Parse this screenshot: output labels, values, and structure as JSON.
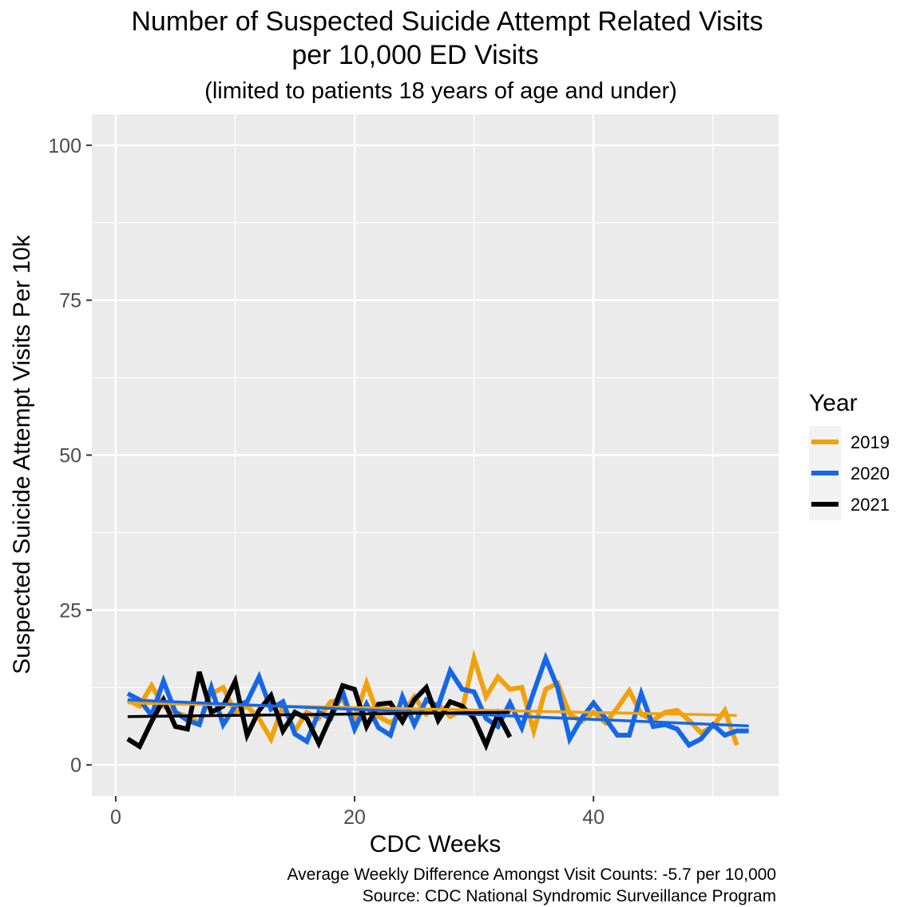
{
  "chart_data": {
    "type": "line",
    "title": "Number of Suspected Suicide Attempt Related Visits",
    "title_line2": "per 10,000 ED Visits",
    "subtitle": "(limited to patients 18 years of age and under)",
    "xlabel": "CDC Weeks",
    "ylabel": "Suspected Suicide Attempt Visits Per 10k",
    "xlim": [
      -2,
      55.5
    ],
    "ylim": [
      -5,
      105
    ],
    "xticks": [
      0,
      20,
      40
    ],
    "yticks": [
      0,
      25,
      50,
      75,
      100
    ],
    "xtick_labels": [
      "0",
      "20",
      "40"
    ],
    "ytick_labels": [
      "0",
      "25",
      "50",
      "75",
      "100"
    ],
    "background": "#ebebeb",
    "grid": true,
    "legend": {
      "title": "Year",
      "position": "right"
    },
    "series": [
      {
        "name": "2019",
        "color": "#f0a10c",
        "x": [
          1,
          2,
          3,
          4,
          5,
          6,
          7,
          8,
          9,
          10,
          11,
          12,
          13,
          14,
          15,
          16,
          17,
          18,
          19,
          20,
          21,
          22,
          23,
          24,
          25,
          26,
          27,
          28,
          29,
          30,
          31,
          32,
          33,
          34,
          35,
          36,
          37,
          38,
          39,
          40,
          41,
          42,
          43,
          44,
          45,
          46,
          47,
          48,
          49,
          50,
          51,
          52
        ],
        "values": [
          10.5,
          9.5,
          12.8,
          9.5,
          8.5,
          7.8,
          6.8,
          11.5,
          12.5,
          8.5,
          9.5,
          7.5,
          4.2,
          9.5,
          5.5,
          8.5,
          7.5,
          10.2,
          10.5,
          7.5,
          13.2,
          7.8,
          6.8,
          8.2,
          11.0,
          8.2,
          9.8,
          7.8,
          8.8,
          17.2,
          11.0,
          14.2,
          12.2,
          12.5,
          5.5,
          12.2,
          13.2,
          8.2,
          7.0,
          8.5,
          6.8,
          9.2,
          12.0,
          8.2,
          7.2,
          8.5,
          8.8,
          7.2,
          5.2,
          6.2,
          8.8,
          3.2
        ]
      },
      {
        "name": "2020",
        "color": "#1567e6",
        "x": [
          1,
          2,
          3,
          4,
          5,
          6,
          7,
          8,
          9,
          10,
          11,
          12,
          13,
          14,
          15,
          16,
          17,
          18,
          19,
          20,
          21,
          22,
          23,
          24,
          25,
          26,
          27,
          28,
          29,
          30,
          31,
          32,
          33,
          34,
          35,
          36,
          37,
          38,
          39,
          40,
          41,
          42,
          43,
          44,
          45,
          46,
          47,
          48,
          49,
          50,
          51,
          52,
          53
        ],
        "values": [
          11.5,
          10.5,
          8.0,
          13.5,
          8.5,
          7.2,
          6.5,
          12.5,
          6.5,
          9.5,
          10.2,
          14.2,
          9.0,
          10.2,
          5.0,
          3.8,
          8.5,
          7.5,
          11.8,
          5.8,
          9.8,
          6.0,
          4.8,
          11.0,
          6.5,
          10.5,
          9.5,
          15.2,
          12.2,
          11.8,
          7.5,
          6.2,
          10.0,
          6.0,
          11.8,
          17.2,
          12.5,
          4.2,
          7.5,
          10.0,
          7.5,
          4.8,
          4.8,
          11.5,
          6.2,
          6.5,
          5.8,
          3.2,
          4.2,
          6.5,
          4.8,
          5.5,
          5.5
        ]
      },
      {
        "name": "2021",
        "color": "#000000",
        "x": [
          1,
          2,
          3,
          4,
          5,
          6,
          7,
          8,
          9,
          10,
          11,
          12,
          13,
          14,
          15,
          16,
          17,
          18,
          19,
          20,
          21,
          22,
          23,
          24,
          25,
          26,
          27,
          28,
          29,
          30,
          31,
          32,
          33
        ],
        "values": [
          4.2,
          3.0,
          7.0,
          10.5,
          6.2,
          5.8,
          15.0,
          8.5,
          9.5,
          13.5,
          4.8,
          8.8,
          11.2,
          5.5,
          8.5,
          7.5,
          3.5,
          7.8,
          12.8,
          12.2,
          6.2,
          9.8,
          10.0,
          7.0,
          10.5,
          12.5,
          7.2,
          10.2,
          9.5,
          7.5,
          3.2,
          8.2,
          4.5
        ]
      }
    ],
    "trendlines": [
      {
        "name": "2019",
        "color": "#f0a10c",
        "x": [
          1,
          52
        ],
        "values": [
          10.0,
          8.0
        ]
      },
      {
        "name": "2020",
        "color": "#1567e6",
        "x": [
          1,
          53
        ],
        "values": [
          10.5,
          6.3
        ]
      },
      {
        "name": "2021",
        "color": "#000000",
        "x": [
          1,
          33
        ],
        "values": [
          7.8,
          8.5
        ]
      }
    ],
    "caption": [
      "Average Weekly Difference Amongst Visit Counts: -5.7 per 10,000",
      "Source: CDC National Syndromic Surveillance Program"
    ]
  }
}
